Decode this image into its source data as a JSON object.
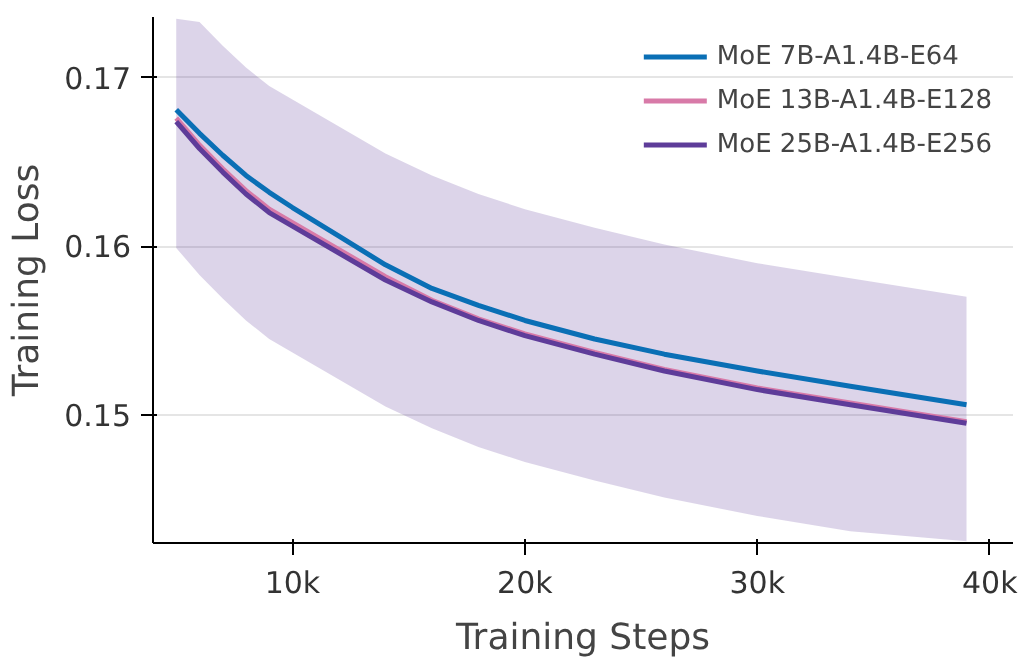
{
  "chart_data": {
    "type": "line",
    "xlabel": "Training Steps",
    "ylabel": "Training Loss",
    "x": [
      5000,
      6000,
      7000,
      8000,
      9000,
      10000,
      12000,
      14000,
      16000,
      18000,
      20000,
      23000,
      26000,
      30000,
      34000,
      39000
    ],
    "xlim": [
      4000,
      41000
    ],
    "xticks": [
      {
        "value": 10000,
        "label": "10k"
      },
      {
        "value": 20000,
        "label": "20k"
      },
      {
        "value": 30000,
        "label": "30k"
      },
      {
        "value": 40000,
        "label": "40k"
      }
    ],
    "ylim": [
      0.1424,
      0.1736
    ],
    "yticks": [
      0.15,
      0.16,
      0.17
    ],
    "grid": "y",
    "legend": "top right",
    "series": [
      {
        "name": "MoE 7B-A1.4B-E64",
        "color": "#0a6fb5",
        "values": [
          0.1681,
          0.1667,
          0.1654,
          0.1642,
          0.1632,
          0.1623,
          0.1606,
          0.1589,
          0.1575,
          0.1565,
          0.1556,
          0.1545,
          0.1536,
          0.1526,
          0.1517,
          0.1506
        ]
      },
      {
        "name": "MoE 13B-A1.4B-E128",
        "color": "#d87aa8",
        "values": [
          0.1676,
          0.166,
          0.1646,
          0.1633,
          0.1622,
          0.1614,
          0.1598,
          0.1582,
          0.1568,
          0.1557,
          0.1548,
          0.1537,
          0.1527,
          0.1516,
          0.1507,
          0.1496
        ]
      },
      {
        "name": "MoE 25B-A1.4B-E256",
        "color": "#5e3c99",
        "values": [
          0.1674,
          0.1658,
          0.1644,
          0.1631,
          0.162,
          0.1612,
          0.1596,
          0.158,
          0.1567,
          0.1556,
          0.1547,
          0.1536,
          0.1526,
          0.1515,
          0.1506,
          0.1495
        ],
        "lower": [
          0.1599,
          0.1583,
          0.1569,
          0.1556,
          0.1545,
          0.1537,
          0.1521,
          0.1505,
          0.1492,
          0.1481,
          0.1472,
          0.1461,
          0.1451,
          0.144,
          0.1431,
          0.1425
        ],
        "upper": [
          0.1735,
          0.1733,
          0.1719,
          0.1706,
          0.1695,
          0.1687,
          0.1671,
          0.1655,
          0.1642,
          0.1631,
          0.1622,
          0.1611,
          0.1601,
          0.159,
          0.1581,
          0.157
        ]
      }
    ]
  }
}
